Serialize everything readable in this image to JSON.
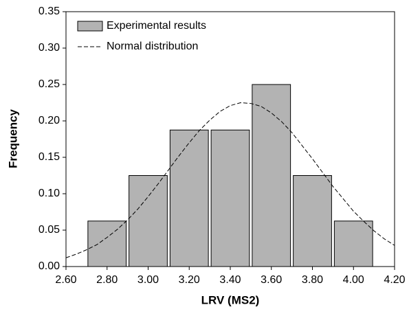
{
  "chart_data": {
    "type": "histogram",
    "xlabel": "LRV (MS2)",
    "ylabel": "Frequency",
    "xlim": [
      2.6,
      4.2
    ],
    "xticks": [
      {
        "value": 2.6,
        "label": "2.60"
      },
      {
        "value": 2.8,
        "label": "2.80"
      },
      {
        "value": 3.0,
        "label": "3.00"
      },
      {
        "value": 3.2,
        "label": "3.20"
      },
      {
        "value": 3.4,
        "label": "3.40"
      },
      {
        "value": 3.6,
        "label": "3.60"
      },
      {
        "value": 3.8,
        "label": "3.80"
      },
      {
        "value": 4.0,
        "label": "4.00"
      },
      {
        "value": 4.2,
        "label": "4.20"
      }
    ],
    "ylim": [
      0,
      0.35
    ],
    "yticks": [
      {
        "value": 0,
        "label": "0.00"
      },
      {
        "value": 0.05,
        "label": "0.05"
      },
      {
        "value": 0.1,
        "label": "0.10"
      },
      {
        "value": 0.15,
        "label": "0.15"
      },
      {
        "value": 0.2,
        "label": "0.20"
      },
      {
        "value": 0.25,
        "label": "0.25"
      },
      {
        "value": 0.3,
        "label": "0.30"
      },
      {
        "value": 0.35,
        "label": "0.35"
      }
    ],
    "legend": "upper left",
    "series": [
      {
        "name": "Experimental results",
        "type": "histogram",
        "color": "#b3b3b3",
        "bins": [
          2.7,
          2.9,
          3.1,
          3.3,
          3.5,
          3.7,
          3.9,
          4.1
        ],
        "values": [
          0.0625,
          0.125,
          0.1875,
          0.1875,
          0.25,
          0.125,
          0.0625
        ]
      },
      {
        "name": "Normal distribution",
        "type": "line",
        "color": "#000000",
        "dashed": true,
        "x": [
          2.6,
          2.65,
          2.7,
          2.75,
          2.8,
          2.85,
          2.9,
          2.95,
          3.0,
          3.05,
          3.1,
          3.15,
          3.2,
          3.25,
          3.3,
          3.35,
          3.4,
          3.45,
          3.5,
          3.55,
          3.6,
          3.65,
          3.7,
          3.75,
          3.8,
          3.85,
          3.9,
          3.95,
          4.0,
          4.05,
          4.1,
          4.15,
          4.2
        ],
        "values": [
          0.012,
          0.017,
          0.023,
          0.03,
          0.04,
          0.051,
          0.064,
          0.079,
          0.096,
          0.114,
          0.133,
          0.152,
          0.17,
          0.187,
          0.201,
          0.213,
          0.221,
          0.225,
          0.224,
          0.22,
          0.211,
          0.199,
          0.184,
          0.166,
          0.148,
          0.129,
          0.11,
          0.093,
          0.076,
          0.062,
          0.049,
          0.038,
          0.029
        ]
      }
    ]
  }
}
